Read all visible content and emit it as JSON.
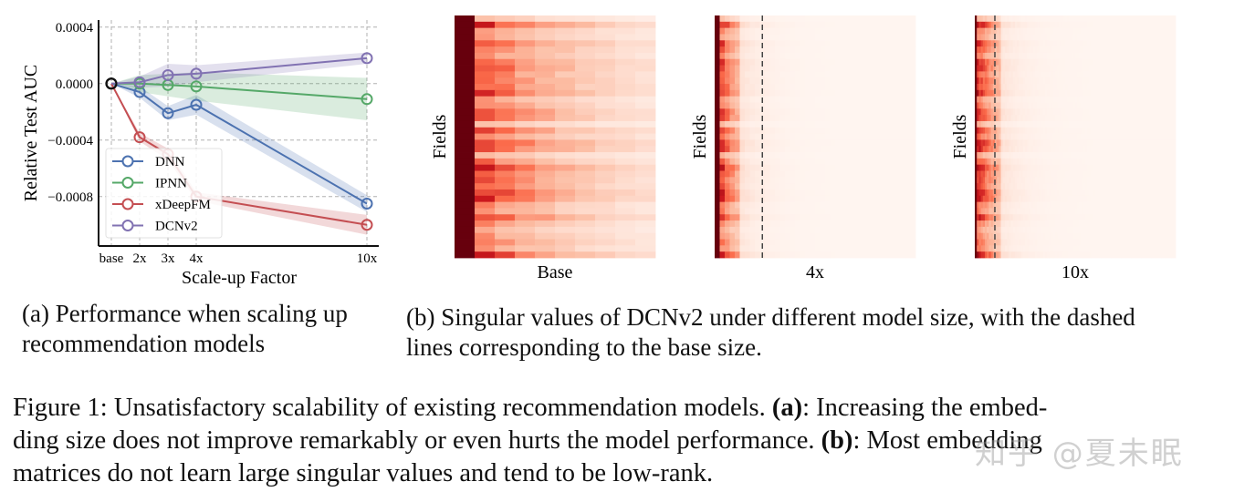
{
  "chart_data": [
    {
      "type": "line",
      "xlabel": "Scale-up Factor",
      "ylabel": "Relative Test AUC",
      "categories": [
        "base",
        "2x",
        "3x",
        "4x",
        "10x"
      ],
      "x": [
        1,
        2,
        3,
        4,
        10
      ],
      "yticks": [
        0.0004,
        0.0,
        -0.0004,
        -0.0008
      ],
      "ytick_labels": [
        "0.0004",
        "0.0000",
        "−0.0004",
        "−0.0008"
      ],
      "ylim": [
        -0.00115,
        0.00045
      ],
      "grid": true,
      "legend_placement": "lower-left",
      "series": [
        {
          "name": "DNN",
          "color": "#4c72b0",
          "values": [
            0,
            -6e-05,
            -0.00021,
            -0.00015,
            -0.00085
          ],
          "band": [
            0,
            4e-05,
            5e-05,
            7e-05,
            6e-05
          ]
        },
        {
          "name": "IPNN",
          "color": "#55a868",
          "values": [
            0,
            0.0,
            -1e-05,
            -2e-05,
            -0.00011
          ],
          "band": [
            0,
            6e-05,
            8e-05,
            0.0001,
            0.00015
          ]
        },
        {
          "name": "xDeepFM",
          "color": "#c44e52",
          "values": [
            0,
            -0.00038,
            -0.0005,
            -0.0008,
            -0.001
          ],
          "band": [
            0,
            3e-05,
            4e-05,
            3e-05,
            7e-05
          ]
        },
        {
          "name": "DCNv2",
          "color": "#8172b2",
          "values": [
            0,
            1e-05,
            6e-05,
            7e-05,
            0.00018
          ],
          "band": [
            0,
            4e-05,
            8e-05,
            6e-05,
            4e-05
          ]
        }
      ]
    },
    {
      "type": "heatmap",
      "panels": [
        {
          "xlabel": "Base",
          "ylabel": "Fields",
          "scale": 1,
          "dashed_line": false
        },
        {
          "xlabel": "4x",
          "ylabel": "Fields",
          "scale": 4,
          "dashed_line": true
        },
        {
          "xlabel": "10x",
          "ylabel": "Fields",
          "scale": 10,
          "dashed_line": true
        }
      ],
      "colormap": "Reds"
    }
  ],
  "captions": {
    "a": [
      "(a) Performance when scaling up",
      "recommendation models"
    ],
    "b": [
      "(b) Singular values of DCNv2 under different model size, with the dashed",
      "lines corresponding to the base size."
    ]
  },
  "figure_caption": {
    "label": "Figure 1: Unsatisfactory scalability of existing recommendation models. ",
    "a_ref": "(a)",
    "a_text": ": Increasing the embed-",
    "line2_a": "ding size does not improve remarkably or even hurts the model performance. ",
    "b_ref": "(b)",
    "line2_b": ": Most embedding",
    "line3": "matrices do not learn large singular values and tend to be low-rank."
  },
  "watermark": "知乎 @夏未眠"
}
